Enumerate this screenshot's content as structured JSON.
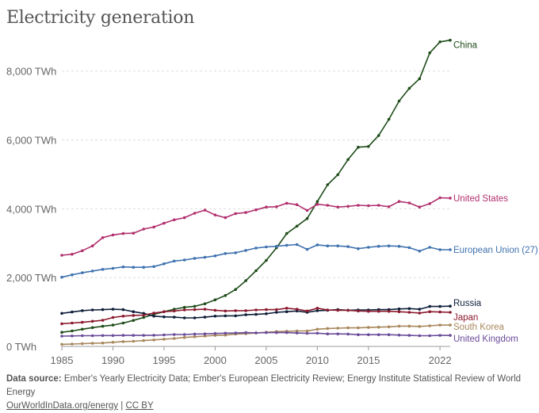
{
  "title": "Electricity generation",
  "footer": {
    "source_label": "Data source:",
    "source_text": "Ember's Yearly Electricity Data; Ember's European Electricity Review; Energy Institute Statistical Review of World Energy",
    "link_text": "OurWorldInData.org/energy",
    "separator": "|",
    "license_text": "CC BY"
  },
  "chart_data": {
    "type": "line",
    "title": "Electricity generation",
    "xlabel": "",
    "ylabel": "",
    "xlim": [
      1985,
      2023
    ],
    "ylim": [
      0,
      8800
    ],
    "x_ticks": [
      1985,
      1990,
      1995,
      2000,
      2005,
      2010,
      2015,
      2022
    ],
    "x_tick_labels": [
      "1985",
      "1990",
      "1995",
      "2000",
      "2005",
      "2010",
      "2015",
      "2022"
    ],
    "y_ticks": [
      0,
      2000,
      4000,
      6000,
      8000
    ],
    "y_tick_labels": [
      "0 TWh",
      "2,000 TWh",
      "4,000 TWh",
      "6,000 TWh",
      "8,000 TWh"
    ],
    "grid": true,
    "legend": "right, at line ends",
    "x": [
      1985,
      1986,
      1987,
      1988,
      1989,
      1990,
      1991,
      1992,
      1993,
      1994,
      1995,
      1996,
      1997,
      1998,
      1999,
      2000,
      2001,
      2002,
      2003,
      2004,
      2005,
      2006,
      2007,
      2008,
      2009,
      2010,
      2011,
      2012,
      2013,
      2014,
      2015,
      2016,
      2017,
      2018,
      2019,
      2020,
      2021,
      2022,
      2023
    ],
    "series": [
      {
        "name": "China",
        "color": "#1f4d1a",
        "values": [
          410,
          450,
          500,
          545,
          585,
          620,
          680,
          755,
          840,
          930,
          1010,
          1080,
          1135,
          1165,
          1240,
          1355,
          1480,
          1655,
          1910,
          2200,
          2500,
          2865,
          3280,
          3495,
          3715,
          4210,
          4700,
          4990,
          5430,
          5790,
          5810,
          6130,
          6600,
          7130,
          7500,
          7780,
          8530,
          8850,
          8900
        ]
      },
      {
        "name": "United States",
        "color": "#b1306e",
        "values": [
          2650,
          2680,
          2780,
          2920,
          3160,
          3240,
          3280,
          3290,
          3410,
          3470,
          3580,
          3680,
          3740,
          3870,
          3960,
          3820,
          3740,
          3860,
          3890,
          3970,
          4050,
          4060,
          4160,
          4120,
          3950,
          4130,
          4100,
          4050,
          4070,
          4100,
          4090,
          4100,
          4060,
          4210,
          4170,
          4050,
          4150,
          4320,
          4310
        ]
      },
      {
        "name": "European Union (27)",
        "color": "#3f72af",
        "values": [
          2010,
          2080,
          2140,
          2190,
          2240,
          2270,
          2310,
          2300,
          2300,
          2320,
          2400,
          2480,
          2510,
          2560,
          2590,
          2630,
          2700,
          2720,
          2790,
          2860,
          2890,
          2910,
          2940,
          2960,
          2820,
          2950,
          2920,
          2920,
          2900,
          2840,
          2880,
          2910,
          2920,
          2910,
          2870,
          2770,
          2880,
          2810,
          2810
        ]
      },
      {
        "name": "Russia",
        "color": "#0e1f3a",
        "values": [
          960,
          1000,
          1040,
          1060,
          1070,
          1080,
          1070,
          1010,
          960,
          880,
          860,
          850,
          830,
          830,
          850,
          880,
          890,
          890,
          920,
          930,
          950,
          990,
          1010,
          1030,
          990,
          1040,
          1050,
          1070,
          1050,
          1060,
          1060,
          1070,
          1070,
          1090,
          1100,
          1080,
          1160,
          1160,
          1170
        ]
      },
      {
        "name": "Japan",
        "color": "#8b1a2f",
        "values": [
          660,
          680,
          700,
          730,
          760,
          840,
          880,
          900,
          910,
          970,
          1010,
          1030,
          1060,
          1070,
          1080,
          1050,
          1030,
          1040,
          1040,
          1060,
          1070,
          1070,
          1110,
          1080,
          1030,
          1110,
          1060,
          1050,
          1050,
          1030,
          1020,
          1020,
          1020,
          1010,
          990,
          970,
          1010,
          1000,
          990
        ]
      },
      {
        "name": "South Korea",
        "color": "#a8875c",
        "values": [
          60,
          70,
          80,
          90,
          100,
          120,
          140,
          150,
          170,
          190,
          210,
          230,
          260,
          280,
          300,
          320,
          330,
          360,
          370,
          390,
          410,
          430,
          440,
          450,
          450,
          500,
          520,
          530,
          540,
          540,
          550,
          560,
          570,
          590,
          590,
          580,
          600,
          620,
          620
        ]
      },
      {
        "name": "United Kingdom",
        "color": "#6b4c9a",
        "values": [
          300,
          305,
          310,
          310,
          315,
          315,
          320,
          320,
          320,
          325,
          335,
          345,
          345,
          360,
          365,
          375,
          385,
          390,
          400,
          395,
          400,
          400,
          400,
          390,
          380,
          385,
          365,
          365,
          360,
          340,
          340,
          340,
          340,
          330,
          320,
          310,
          310,
          320,
          320
        ]
      }
    ]
  }
}
